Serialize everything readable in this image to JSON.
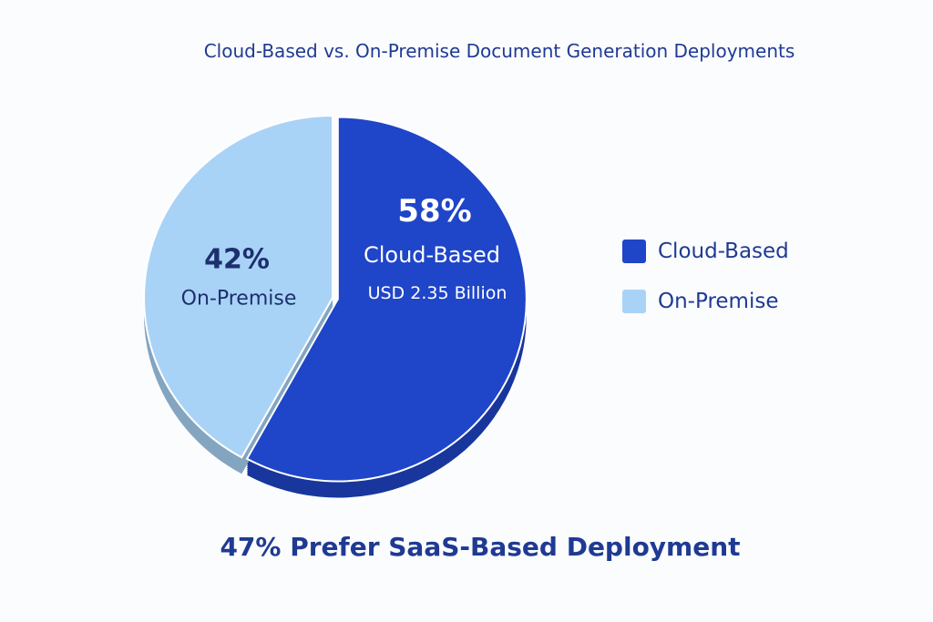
{
  "chart_data": {
    "type": "pie",
    "title": "Cloud-Based vs. On-Premise Document Generation Deployments",
    "slices": [
      {
        "name": "Cloud-Based",
        "value": 58,
        "label": "58%",
        "sublabel": "Cloud-Based",
        "detail": "USD 2.35 Billion",
        "color": "#1f45c8"
      },
      {
        "name": "On-Premise",
        "value": 42,
        "label": "42%",
        "sublabel": "On-Premise",
        "color": "#a9d3f6"
      }
    ],
    "legend": {
      "position": "right",
      "items": [
        "Cloud-Based",
        "On-Premise"
      ]
    },
    "footnote": "47% Prefer SaaS-Based Deployment"
  }
}
